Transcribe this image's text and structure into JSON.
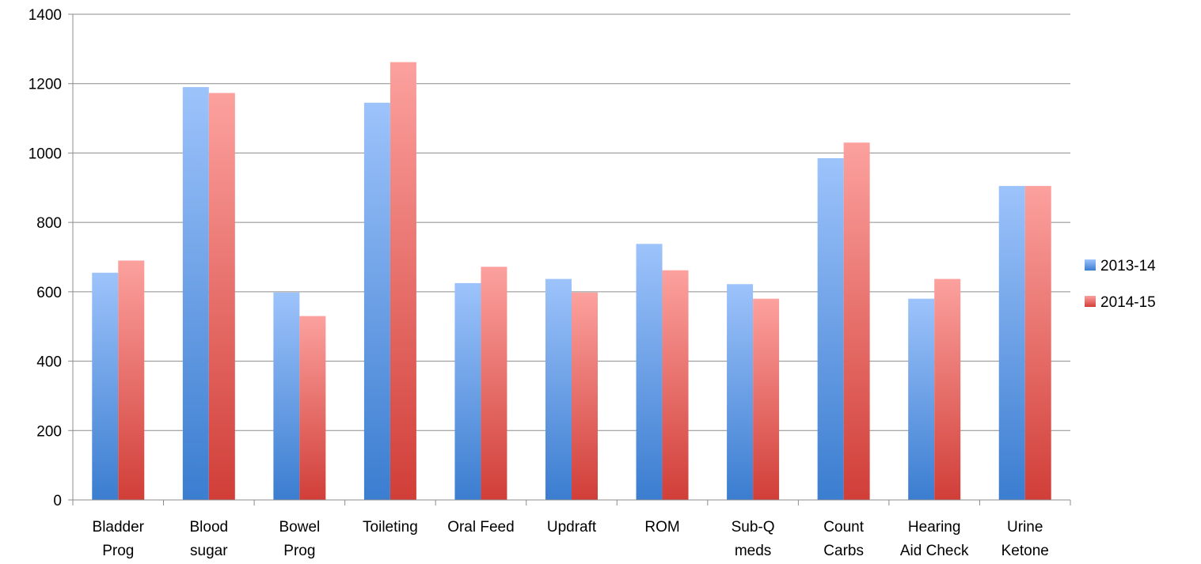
{
  "chart_data": {
    "type": "bar",
    "title": "",
    "xlabel": "",
    "ylabel": "",
    "ylim": [
      0,
      1400
    ],
    "yticks": [
      0,
      200,
      400,
      600,
      800,
      1000,
      1200,
      1400
    ],
    "grid": true,
    "legend_position": "right",
    "categories": [
      [
        "Bladder",
        "Prog"
      ],
      [
        "Blood",
        "sugar"
      ],
      [
        "Bowel",
        "Prog"
      ],
      [
        "Toileting"
      ],
      [
        "Oral Feed"
      ],
      [
        "Updraft"
      ],
      [
        "ROM"
      ],
      [
        "Sub-Q",
        "meds"
      ],
      [
        "Count",
        "Carbs"
      ],
      [
        "Hearing",
        "Aid Check"
      ],
      [
        "Urine",
        "Ketone"
      ]
    ],
    "series": [
      {
        "name": "2013-14",
        "color_top": "#9dc3fb",
        "color_bottom": "#3b7dd0",
        "values": [
          655,
          1190,
          598,
          1145,
          625,
          637,
          738,
          622,
          985,
          580,
          905
        ]
      },
      {
        "name": "2014-15",
        "color_top": "#fca19e",
        "color_bottom": "#d13e38",
        "values": [
          690,
          1173,
          530,
          1262,
          672,
          598,
          662,
          580,
          1030,
          637,
          905
        ]
      }
    ]
  }
}
